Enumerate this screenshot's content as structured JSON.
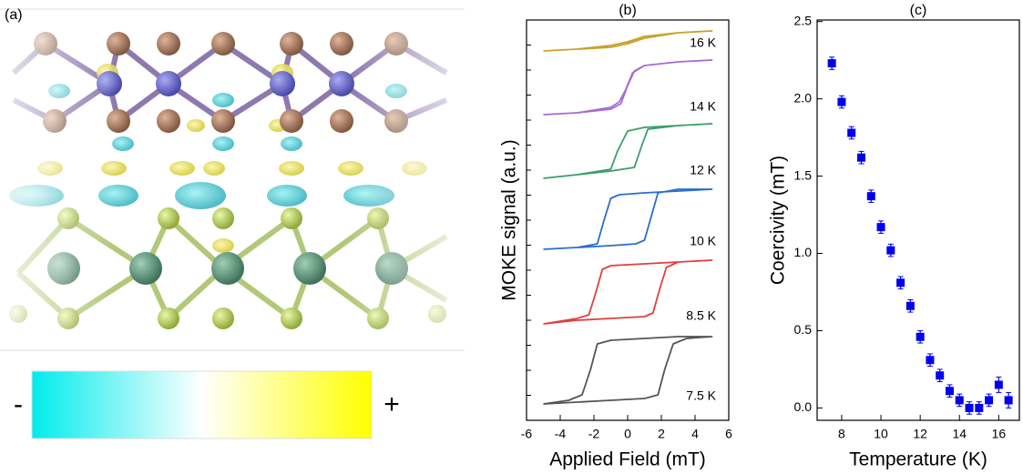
{
  "panel_a": {
    "label": "(a)",
    "colorbar_labels": [
      "-",
      "+"
    ]
  },
  "chart_data": [
    {
      "type": "line",
      "panel_label": "(b)",
      "x_label": "Applied Field (mT)",
      "y_label": "MOKE signal (a.u.)",
      "xlim": [
        -6,
        6
      ],
      "xticks": [
        -6,
        -4,
        -2,
        0,
        2,
        4,
        6
      ],
      "ylim": [
        0,
        11
      ],
      "series": [
        {
          "name": "7.5 K",
          "color": "#555555",
          "x": [
            -5,
            -3,
            -1,
            1,
            1.8,
            2.2,
            2.7,
            3.5,
            5,
            5,
            3,
            1,
            -1,
            -1.8,
            -2.2,
            -2.7,
            -3.5,
            -5
          ],
          "values": [
            0.45,
            0.5,
            0.55,
            0.6,
            0.7,
            1.4,
            2.1,
            2.25,
            2.3,
            2.3,
            2.3,
            2.25,
            2.2,
            2.1,
            1.4,
            0.7,
            0.55,
            0.45
          ]
        },
        {
          "name": "8.5 K",
          "color": "#e0403f",
          "x": [
            -5,
            -3,
            -1,
            1,
            1.5,
            1.9,
            2.3,
            3,
            5,
            5,
            3,
            1,
            -1,
            -1.5,
            -1.9,
            -2.3,
            -3,
            -5
          ],
          "values": [
            2.65,
            2.75,
            2.8,
            2.85,
            2.95,
            3.6,
            4.2,
            4.35,
            4.4,
            4.4,
            4.35,
            4.3,
            4.25,
            4.15,
            3.5,
            2.9,
            2.8,
            2.65
          ]
        },
        {
          "name": "10 K",
          "color": "#2a6fc9",
          "x": [
            -5,
            -3,
            -1,
            0.5,
            1,
            1.4,
            1.8,
            3,
            5,
            5,
            3,
            1,
            -0.5,
            -1,
            -1.4,
            -1.8,
            -3,
            -5
          ],
          "values": [
            4.7,
            4.75,
            4.8,
            4.85,
            4.95,
            5.6,
            6.25,
            6.35,
            6.35,
            6.35,
            6.3,
            6.25,
            6.2,
            6.1,
            5.5,
            4.85,
            4.75,
            4.7
          ]
        },
        {
          "name": "12 K",
          "color": "#3a9e6a",
          "x": [
            -5,
            -3,
            -1,
            0.4,
            0.8,
            1.2,
            3,
            5,
            5,
            3,
            1,
            0,
            -0.6,
            -1,
            -3,
            -5
          ],
          "values": [
            6.65,
            6.75,
            6.85,
            6.95,
            7.5,
            8.0,
            8.1,
            8.15,
            8.15,
            8.1,
            8.05,
            7.95,
            7.4,
            6.9,
            6.75,
            6.65
          ]
        },
        {
          "name": "14 K",
          "color": "#a66bd3",
          "x": [
            -5,
            -3,
            -1,
            -0.4,
            0,
            0.4,
            1,
            3,
            5,
            5,
            3,
            1,
            0.3,
            -0.1,
            -0.5,
            -1,
            -3,
            -5
          ],
          "values": [
            8.4,
            8.45,
            8.55,
            8.7,
            9.2,
            9.6,
            9.75,
            9.85,
            9.9,
            9.9,
            9.85,
            9.75,
            9.55,
            9.1,
            8.75,
            8.6,
            8.45,
            8.4
          ]
        },
        {
          "name": "16 K",
          "color": "#c9a227",
          "x": [
            -5,
            -3,
            -1,
            0,
            1,
            3,
            5,
            5,
            3,
            1,
            0,
            -1,
            -3,
            -5
          ],
          "values": [
            10.15,
            10.2,
            10.3,
            10.4,
            10.55,
            10.65,
            10.7,
            10.7,
            10.65,
            10.5,
            10.35,
            10.25,
            10.2,
            10.15
          ]
        }
      ]
    },
    {
      "type": "scatter",
      "panel_label": "(c)",
      "x_label": "Temperature (K)",
      "y_label": "Coercivity (mT)",
      "color": "#0000ee",
      "x": [
        7.5,
        8,
        8.5,
        9,
        9.5,
        10,
        10.5,
        11,
        11.5,
        12,
        12.5,
        13,
        13.5,
        14,
        14.5,
        15,
        15.5,
        16,
        16.5
      ],
      "values": [
        2.23,
        1.98,
        1.78,
        1.62,
        1.37,
        1.17,
        1.02,
        0.81,
        0.66,
        0.46,
        0.31,
        0.21,
        0.11,
        0.05,
        0.0,
        0.0,
        0.05,
        0.15,
        0.05
      ],
      "errors": [
        0.04,
        0.04,
        0.04,
        0.04,
        0.04,
        0.04,
        0.04,
        0.04,
        0.04,
        0.04,
        0.04,
        0.04,
        0.04,
        0.04,
        0.04,
        0.04,
        0.04,
        0.05,
        0.05
      ],
      "xlim": [
        6.75,
        17.05
      ],
      "xticks": [
        8,
        10,
        12,
        14,
        16
      ],
      "ylim": [
        -0.08,
        2.51
      ],
      "yticks": [
        {
          "value": 0,
          "label": "0.0"
        },
        0.5,
        {
          "value": 1,
          "label": "1.0"
        },
        1.5,
        {
          "value": 2,
          "label": "2.0"
        },
        2.5
      ]
    }
  ]
}
